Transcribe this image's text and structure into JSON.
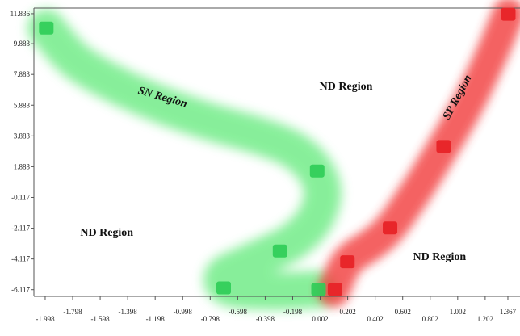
{
  "chart_data": {
    "type": "scatter",
    "title": "",
    "xlabel": "",
    "ylabel": "",
    "xlim": [
      -2.08,
      1.42
    ],
    "ylim": [
      -6.5,
      12.2
    ],
    "x_ticks_upper": [
      "-1.798",
      "-1.398",
      "-0.998",
      "-0.598",
      "-0.198",
      "0.202",
      "0.602",
      "1.002",
      "1.367"
    ],
    "x_ticks_lower": [
      "-1.998",
      "-1.598",
      "-1.198",
      "-0.798",
      "-0.398",
      "0.002",
      "0.402",
      "0.802",
      "1.202"
    ],
    "y_ticks": [
      "11.836",
      "9.883",
      "7.883",
      "5.883",
      "3.883",
      "1.883",
      "-0.117",
      "-2.117",
      "-4.117",
      "-6.117"
    ],
    "series": [
      {
        "color": "#2ecc57",
        "points": [
          {
            "x": -1.99,
            "y": 10.9
          },
          {
            "x": -0.02,
            "y": 1.6
          },
          {
            "x": -0.29,
            "y": -3.6
          },
          {
            "x": -0.7,
            "y": -6.0
          },
          {
            "x": -0.01,
            "y": -6.1
          }
        ]
      },
      {
        "color": "#e8262a",
        "points": [
          {
            "x": 0.11,
            "y": -6.1
          },
          {
            "x": 0.2,
            "y": -4.3
          },
          {
            "x": 0.51,
            "y": -2.1
          },
          {
            "x": 0.9,
            "y": 3.2
          },
          {
            "x": 1.37,
            "y": 11.8
          }
        ]
      }
    ],
    "regions": [
      {
        "label": "SN Region",
        "color": "#3ee85e",
        "x": -1.15,
        "y": 6.2,
        "rotate": 16
      },
      {
        "label": "ND Region",
        "x": 0.19,
        "y": 6.9,
        "rotate": 0
      },
      {
        "label": "ND Region",
        "x": -1.55,
        "y": -2.6,
        "rotate": 0
      },
      {
        "label": "ND Region",
        "x": 0.87,
        "y": -4.2,
        "rotate": 0
      },
      {
        "label": "SP Region",
        "color": "#ff3b3b",
        "x": 1.02,
        "y": 6.3,
        "rotate": -62
      }
    ],
    "band_paths": {
      "sn": [
        [
          -1.99,
          10.9
        ],
        [
          -1.78,
          8.8
        ],
        [
          -1.48,
          7.2
        ],
        [
          -1.15,
          5.9
        ],
        [
          -0.8,
          4.8
        ],
        [
          -0.45,
          3.9
        ],
        [
          -0.2,
          3.0
        ],
        [
          -0.04,
          1.7
        ],
        [
          0.02,
          0.1
        ],
        [
          -0.05,
          -1.7
        ],
        [
          -0.22,
          -3.1
        ],
        [
          -0.5,
          -4.3
        ],
        [
          -0.7,
          -5.2
        ],
        [
          -0.65,
          -6.0
        ],
        [
          -0.35,
          -6.2
        ],
        [
          -0.02,
          -6.1
        ]
      ],
      "sp": [
        [
          0.1,
          -6.2
        ],
        [
          0.2,
          -4.3
        ],
        [
          0.37,
          -3.2
        ],
        [
          0.51,
          -2.1
        ],
        [
          0.7,
          0.3
        ],
        [
          0.9,
          3.2
        ],
        [
          1.08,
          6.0
        ],
        [
          1.25,
          9.2
        ],
        [
          1.37,
          11.8
        ]
      ]
    }
  }
}
